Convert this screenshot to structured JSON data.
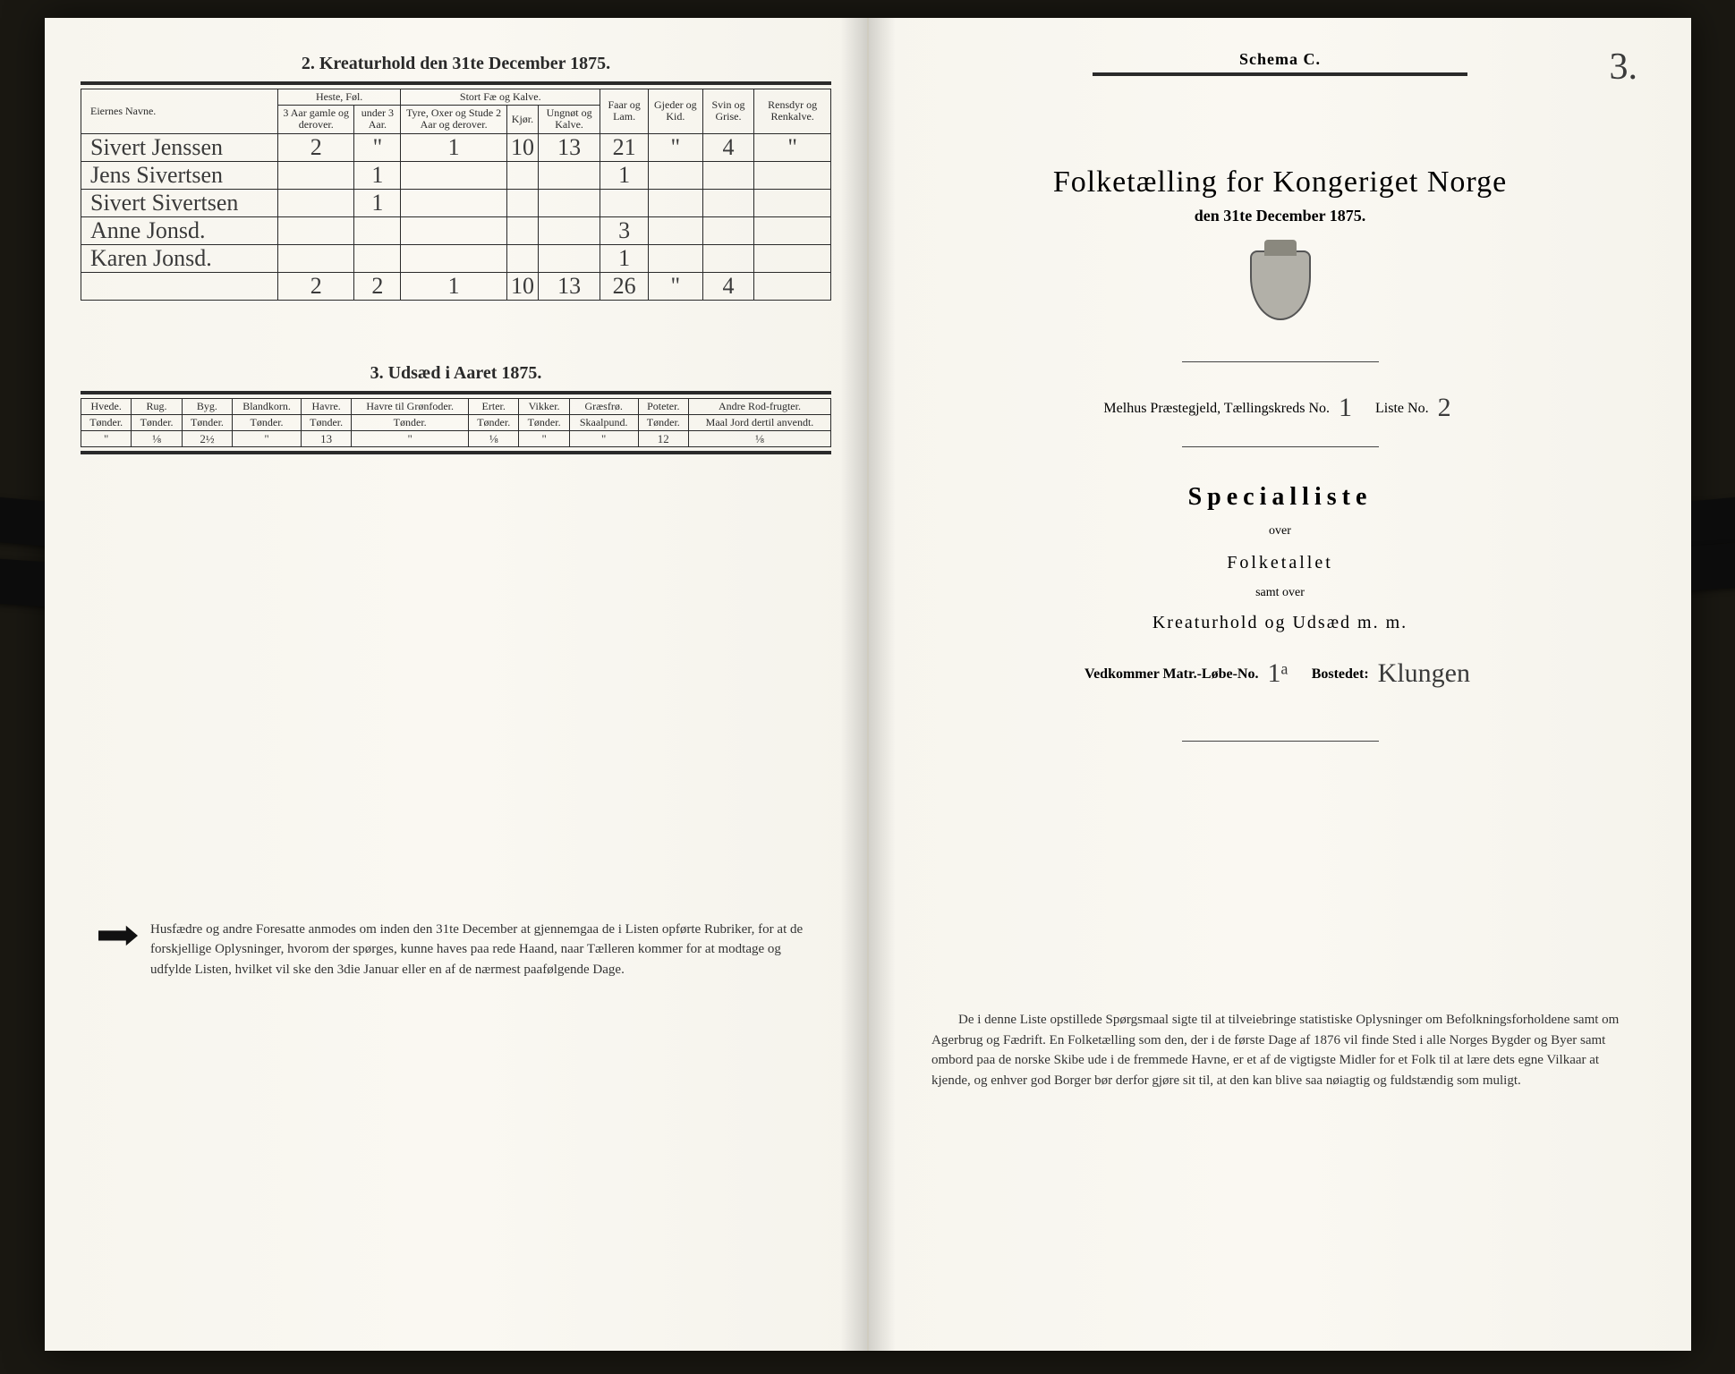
{
  "left": {
    "section2_title": "2.  Kreaturhold den 31te December 1875.",
    "livestock_headers": {
      "name": "Eiernes Navne.",
      "horses_group": "Heste, Føl.",
      "horses_old": "3 Aar gamle og derover.",
      "horses_young": "under 3 Aar.",
      "cattle_group": "Stort Fæ og Kalve.",
      "bulls": "Tyre, Oxer og Stude 2 Aar og derover.",
      "cows": "Kjør.",
      "calves": "Ungnøt og Kalve.",
      "sheep": "Faar og Lam.",
      "goats": "Gjeder og Kid.",
      "pigs": "Svin og Grise.",
      "reindeer": "Rensdyr og Renkalve."
    },
    "livestock_rows": [
      {
        "name": "Sivert Jenssen",
        "h_old": "2",
        "h_young": "\"",
        "bulls": "1",
        "cows": "10",
        "calves": "13",
        "sheep": "21",
        "goats": "\"",
        "pigs": "4",
        "reindeer": "\""
      },
      {
        "name": "Jens Sivertsen",
        "h_old": "",
        "h_young": "1",
        "bulls": "",
        "cows": "",
        "calves": "",
        "sheep": "1",
        "goats": "",
        "pigs": "",
        "reindeer": ""
      },
      {
        "name": "Sivert Sivertsen",
        "h_old": "",
        "h_young": "1",
        "bulls": "",
        "cows": "",
        "calves": "",
        "sheep": "",
        "goats": "",
        "pigs": "",
        "reindeer": ""
      },
      {
        "name": "Anne Jonsd.",
        "h_old": "",
        "h_young": "",
        "bulls": "",
        "cows": "",
        "calves": "",
        "sheep": "3",
        "goats": "",
        "pigs": "",
        "reindeer": ""
      },
      {
        "name": "Karen Jonsd.",
        "h_old": "",
        "h_young": "",
        "bulls": "",
        "cows": "",
        "calves": "",
        "sheep": "1",
        "goats": "",
        "pigs": "",
        "reindeer": ""
      }
    ],
    "livestock_totals": {
      "h_old": "2",
      "h_young": "2",
      "bulls": "1",
      "cows": "10",
      "calves": "13",
      "sheep": "26",
      "goats": "\"",
      "pigs": "4",
      "reindeer": ""
    },
    "section3_title": "3.  Udsæd i Aaret 1875.",
    "seed_headers": {
      "wheat": "Hvede.",
      "rye": "Rug.",
      "barley": "Byg.",
      "mixed": "Blandkorn.",
      "oats": "Havre.",
      "oats_fodder": "Havre til Grønfoder.",
      "peas": "Erter.",
      "vetch": "Vikker.",
      "grass": "Græsfrø.",
      "potatoes": "Poteter.",
      "roots": "Andre Rod-frugter.",
      "unit_t": "Tønder.",
      "unit_s": "Skaalpund.",
      "unit_m": "Maal Jord dertil anvendt."
    },
    "seed_row": {
      "wheat": "\"",
      "rye": "⅛",
      "barley": "2½",
      "mixed": "\"",
      "oats": "13",
      "oats_fodder": "\"",
      "peas": "⅛",
      "vetch": "\"",
      "grass": "\"",
      "potatoes": "12",
      "roots": "⅛"
    },
    "footnote": "Husfædre og andre Foresatte anmodes om inden den 31te December at gjennemgaa de i Listen opførte Rubriker, for at de forskjellige Oplysninger, hvorom der spørges, kunne haves paa rede Haand, naar Tælleren kommer for at modtage og udfylde Listen, hvilket vil ske den 3die Januar eller en af de nærmest paafølgende Dage."
  },
  "right": {
    "schema": "Schema C.",
    "page_num": "3.",
    "title": "Folketælling for Kongeriget Norge",
    "subtitle": "den 31te December 1875.",
    "meta_prefix": "Melhus Præstegjeld, Tællingskreds No.",
    "meta_kreds": "1",
    "meta_liste_label": "Liste No.",
    "meta_liste": "2",
    "special": "Specialliste",
    "over": "over",
    "folketallet": "Folketallet",
    "samt": "samt over",
    "kreatur": "Kreaturhold og Udsæd m. m.",
    "vedkommer_label": "Vedkommer Matr.-Løbe-No.",
    "matr_no": "1ᵃ",
    "bostedet_label": "Bostedet:",
    "bostedet": "Klungen",
    "footnote": "De i denne Liste opstillede Spørgsmaal sigte til at tilveiebringe statistiske Oplysninger om Befolkningsforholdene samt om Agerbrug og Fædrift. En Folketælling som den, der i de første Dage af 1876 vil finde Sted i alle Norges Bygder og Byer samt ombord paa de norske Skibe ude i de fremmede Havne, er et af de vigtigste Midler for et Folk til at lære dets egne Vilkaar at kjende, og enhver god Borger bør derfor gjøre sit til, at den kan blive saa nøiagtig og fuldstændig som muligt."
  },
  "colors": {
    "paper": "#f7f5ee",
    "ink": "#2a2a2a",
    "background": "#1a1812"
  }
}
